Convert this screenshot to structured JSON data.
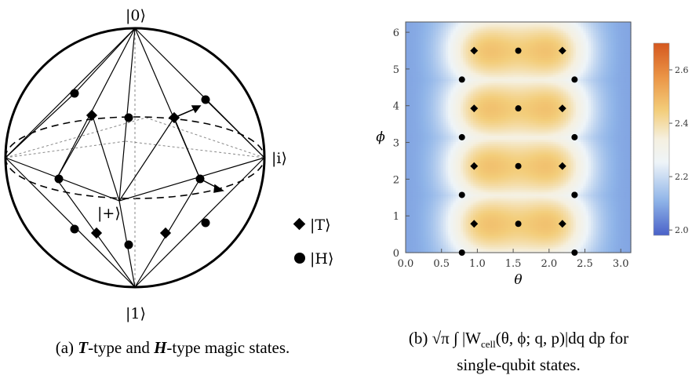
{
  "panel_a": {
    "kets": {
      "zero": "|0⟩",
      "one": "|1⟩",
      "i": "|i⟩",
      "plus": "|+⟩"
    },
    "legend": [
      {
        "marker": "diamond-icon",
        "label": "|T⟩"
      },
      {
        "marker": "circle-icon",
        "label": "|H⟩"
      }
    ],
    "caption_tail": "-type and ",
    "caption_T": "T",
    "caption_H": "H",
    "caption_end": "-type magic states.",
    "caption_prefix": "(a) "
  },
  "panel_b": {
    "caption_line1": "(b) √π ∫ |W",
    "caption_sub": "cell",
    "caption_rest": "(θ, ϕ; q, p)|dq dp for",
    "caption_line2": "single-qubit states.",
    "chart_data": {
      "type": "heatmap",
      "xlabel": "θ",
      "ylabel": "ϕ",
      "xlim": [
        0,
        3.14
      ],
      "ylim": [
        0,
        6.28
      ],
      "x_ticks": [
        "0.0",
        "0.5",
        "1.0",
        "1.5",
        "2.0",
        "2.5",
        "3.0"
      ],
      "y_ticks": [
        "0",
        "1",
        "2",
        "3",
        "4",
        "5",
        "6"
      ],
      "colorbar_ticks": [
        "2.0",
        "2.2",
        "2.4",
        "2.6"
      ],
      "colorbar_range": [
        1.98,
        2.7
      ],
      "colors": {
        "low": "#3b4cc0",
        "mid": "#f7f7f7",
        "high": "#d9622b"
      },
      "T_states": [
        [
          0.955,
          0.785
        ],
        [
          2.186,
          0.785
        ],
        [
          0.955,
          2.356
        ],
        [
          2.186,
          2.356
        ],
        [
          0.955,
          3.927
        ],
        [
          2.186,
          3.927
        ],
        [
          0.955,
          5.498
        ],
        [
          2.186,
          5.498
        ]
      ],
      "H_states": [
        [
          0.785,
          0
        ],
        [
          2.356,
          0
        ],
        [
          1.571,
          0.785
        ],
        [
          2.356,
          1.571
        ],
        [
          2.356,
          1.571
        ],
        [
          1.571,
          2.356
        ],
        [
          0.785,
          3.142
        ],
        [
          2.356,
          3.142
        ],
        [
          1.571,
          3.927
        ],
        [
          0.785,
          4.712
        ],
        [
          2.356,
          4.712
        ],
        [
          1.571,
          5.498
        ],
        [
          0.785,
          1.571
        ]
      ]
    }
  }
}
